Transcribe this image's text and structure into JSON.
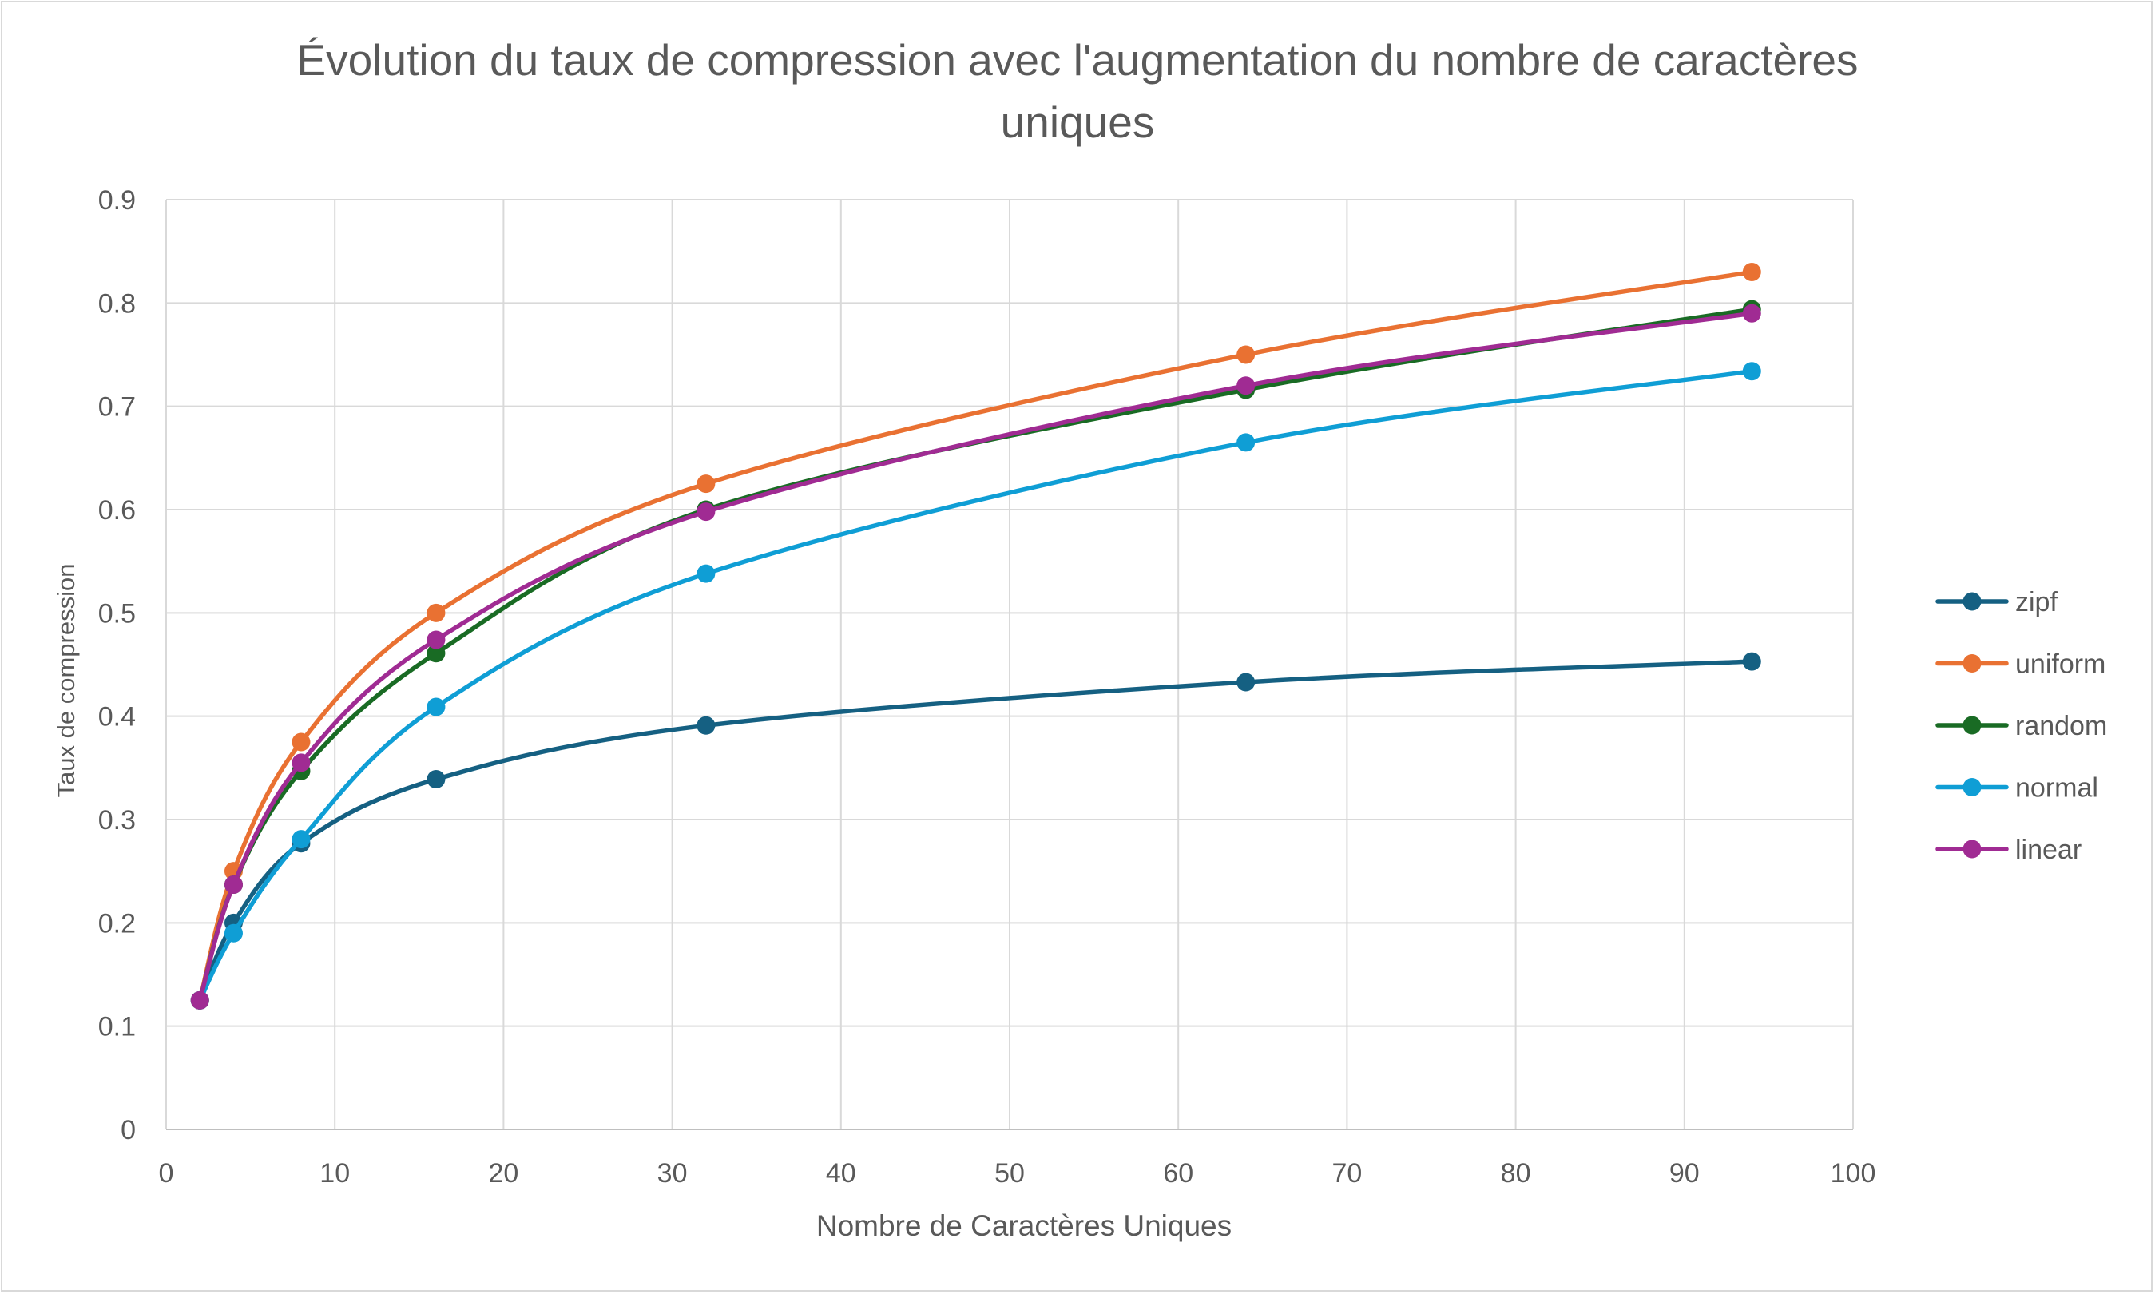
{
  "chart_data": {
    "type": "line",
    "title": "Évolution du taux de compression avec l'augmentation du nombre de caractères uniques",
    "title_lines": [
      "Évolution du taux de compression avec l'augmentation du nombre de caractères",
      "uniques"
    ],
    "xlabel": "Nombre de Caractères Uniques",
    "ylabel": "Taux de compression",
    "xlim": [
      0,
      100
    ],
    "ylim": [
      0,
      0.9
    ],
    "x_ticks": [
      "0",
      "10",
      "20",
      "30",
      "40",
      "50",
      "60",
      "70",
      "80",
      "90",
      "100"
    ],
    "y_ticks": [
      "0",
      "0.1",
      "0.2",
      "0.3",
      "0.4",
      "0.5",
      "0.6",
      "0.7",
      "0.8",
      "0.9"
    ],
    "grid": true,
    "smooth": true,
    "markers": true,
    "legend_position": "right",
    "x": [
      2,
      4,
      8,
      16,
      32,
      64,
      94
    ],
    "series": [
      {
        "name": "zipf",
        "color": "#156082",
        "values": [
          0.125,
          0.2,
          0.277,
          0.339,
          0.391,
          0.433,
          0.453
        ]
      },
      {
        "name": "uniform",
        "color": "#E97132",
        "values": [
          0.125,
          0.25,
          0.375,
          0.5,
          0.625,
          0.75,
          0.83
        ]
      },
      {
        "name": "random",
        "color": "#196B24",
        "values": [
          0.125,
          0.237,
          0.347,
          0.461,
          0.6,
          0.716,
          0.794
        ]
      },
      {
        "name": "normal",
        "color": "#0F9ED5",
        "values": [
          0.125,
          0.19,
          0.281,
          0.409,
          0.538,
          0.665,
          0.734
        ]
      },
      {
        "name": "linear",
        "color": "#A02B93",
        "values": [
          0.125,
          0.237,
          0.355,
          0.474,
          0.598,
          0.72,
          0.79
        ]
      }
    ]
  }
}
